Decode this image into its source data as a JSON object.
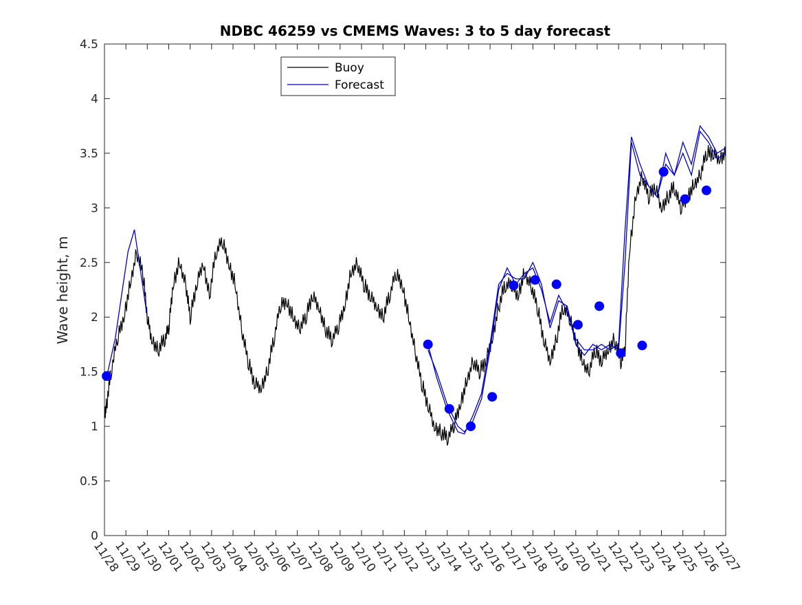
{
  "chart_data": {
    "type": "line",
    "title": "NDBC 46259 vs CMEMS Waves: 3 to 5 day forecast",
    "xlabel": "",
    "ylabel": "Wave height, m",
    "ylim": [
      0,
      4.5
    ],
    "yticks": [
      "0",
      "0.5",
      "1",
      "1.5",
      "2",
      "2.5",
      "3",
      "3.5",
      "4",
      "4.5"
    ],
    "xlim": [
      0,
      29
    ],
    "xtick_labels": [
      "11/28",
      "11/29",
      "11/30",
      "12/01",
      "12/02",
      "12/03",
      "12/04",
      "12/05",
      "12/06",
      "12/07",
      "12/08",
      "12/09",
      "12/10",
      "12/11",
      "12/12",
      "12/13",
      "12/14",
      "12/15",
      "12/16",
      "12/17",
      "12/18",
      "12/19",
      "12/20",
      "12/21",
      "12/22",
      "12/23",
      "12/24",
      "12/25",
      "12/26",
      "12/27"
    ],
    "grid": false,
    "legend": "top-center",
    "series": [
      {
        "name": "Buoy",
        "color": "#000000",
        "x": [
          0,
          0.1,
          0.3,
          0.6,
          0.9,
          1.2,
          1.5,
          1.8,
          2.0,
          2.2,
          2.5,
          2.8,
          3.0,
          3.2,
          3.5,
          3.8,
          4.0,
          4.3,
          4.6,
          4.9,
          5.2,
          5.5,
          5.8,
          6.1,
          6.4,
          6.7,
          7.0,
          7.3,
          7.6,
          7.9,
          8.2,
          8.5,
          8.8,
          9.1,
          9.4,
          9.7,
          10.0,
          10.3,
          10.6,
          10.9,
          11.2,
          11.5,
          11.8,
          12.1,
          12.4,
          12.7,
          13.0,
          13.3,
          13.6,
          13.9,
          14.2,
          14.5,
          14.8,
          15.1,
          15.4,
          15.7,
          16.0,
          16.3,
          16.6,
          16.9,
          17.2,
          17.5,
          17.8,
          18.1,
          18.4,
          18.7,
          19.0,
          19.3,
          19.6,
          19.9,
          20.2,
          20.5,
          20.8,
          21.1,
          21.4,
          21.7,
          22.0,
          22.3,
          22.6,
          22.9,
          23.2,
          23.5,
          23.8,
          24.1,
          24.3,
          24.5,
          24.8,
          25.1,
          25.4,
          25.7,
          26.0,
          26.3,
          26.6,
          26.9,
          27.2,
          27.5,
          27.8,
          28.1,
          28.4,
          28.7,
          29.0
        ],
        "y": [
          1.1,
          1.2,
          1.5,
          1.8,
          2.0,
          2.3,
          2.6,
          2.4,
          2.0,
          1.8,
          1.7,
          1.8,
          1.9,
          2.3,
          2.5,
          2.3,
          2.0,
          2.3,
          2.5,
          2.2,
          2.6,
          2.7,
          2.5,
          2.3,
          1.9,
          1.6,
          1.4,
          1.35,
          1.5,
          1.8,
          2.1,
          2.15,
          2.0,
          1.9,
          2.0,
          2.2,
          2.1,
          1.9,
          1.8,
          1.9,
          2.1,
          2.4,
          2.5,
          2.3,
          2.2,
          2.1,
          2.0,
          2.2,
          2.4,
          2.3,
          2.0,
          1.7,
          1.4,
          1.2,
          1.0,
          0.95,
          0.9,
          1.0,
          1.2,
          1.4,
          1.6,
          1.5,
          1.6,
          1.8,
          2.1,
          2.3,
          2.3,
          2.2,
          2.4,
          2.3,
          2.1,
          1.8,
          1.6,
          1.8,
          2.1,
          2.0,
          1.8,
          1.6,
          1.5,
          1.7,
          1.6,
          1.7,
          1.8,
          1.6,
          1.7,
          2.6,
          3.1,
          3.3,
          3.1,
          3.2,
          3.0,
          3.1,
          3.2,
          3.0,
          3.1,
          3.2,
          3.3,
          3.5,
          3.5,
          3.45,
          3.5
        ]
      },
      {
        "name": "Forecast",
        "color": "#0000cc",
        "segments": [
          {
            "x": [
              0.1,
              0.5,
              0.8,
              1.1,
              1.4,
              1.7,
              2.0
            ],
            "y": [
              1.45,
              1.8,
              2.2,
              2.6,
              2.8,
              2.4,
              2.0
            ]
          },
          {
            "x": [
              15.1,
              15.5,
              16.0,
              16.5,
              16.8,
              17.2,
              17.6,
              18.0,
              18.4,
              18.8,
              19.2,
              19.6,
              20.0,
              20.4,
              20.8,
              21.2,
              21.6,
              22.0,
              22.4,
              22.8,
              23.2,
              23.6,
              24.0,
              24.3,
              24.6,
              25.0,
              25.4,
              25.8,
              26.2,
              26.6,
              27.0,
              27.4,
              27.8,
              28.2,
              28.6,
              29.0
            ],
            "y": [
              1.75,
              1.45,
              1.15,
              0.95,
              0.93,
              1.1,
              1.3,
              1.75,
              2.3,
              2.4,
              2.35,
              2.35,
              2.5,
              2.3,
              1.9,
              2.15,
              2.1,
              1.75,
              1.65,
              1.75,
              1.7,
              1.75,
              1.7,
              2.5,
              3.6,
              3.3,
              3.2,
              3.1,
              3.4,
              3.3,
              3.5,
              3.3,
              3.7,
              3.6,
              3.45,
              3.5
            ]
          },
          {
            "x": [
              15.1,
              15.5,
              16.0,
              16.5,
              16.8,
              17.2,
              17.6,
              18.0,
              18.4,
              18.8,
              19.2,
              19.6,
              20.0,
              20.4,
              20.8,
              21.2,
              21.6,
              22.0,
              22.4,
              22.8,
              23.2,
              23.6,
              24.0,
              24.3,
              24.6,
              25.0,
              25.4,
              25.8,
              26.2,
              26.6,
              27.0,
              27.4,
              27.8,
              28.2,
              28.6,
              29.0
            ],
            "y": [
              1.7,
              1.5,
              1.2,
              1.0,
              0.95,
              1.05,
              1.25,
              1.7,
              2.25,
              2.45,
              2.3,
              2.4,
              2.45,
              2.25,
              1.95,
              2.2,
              2.05,
              1.8,
              1.7,
              1.7,
              1.75,
              1.7,
              1.75,
              2.8,
              3.65,
              3.4,
              3.2,
              3.1,
              3.5,
              3.3,
              3.6,
              3.4,
              3.75,
              3.65,
              3.5,
              3.55
            ]
          }
        ]
      }
    ],
    "markers": {
      "color": "#0000ff",
      "x": [
        0.1,
        15.1,
        16.1,
        17.1,
        18.1,
        19.1,
        20.1,
        21.1,
        22.1,
        23.1,
        24.1,
        25.1,
        26.1,
        27.1,
        28.1
      ],
      "y": [
        1.46,
        1.75,
        1.16,
        1.0,
        1.27,
        2.29,
        2.34,
        2.3,
        1.93,
        2.1,
        1.67,
        1.74,
        3.33,
        3.08,
        3.16
      ]
    }
  }
}
